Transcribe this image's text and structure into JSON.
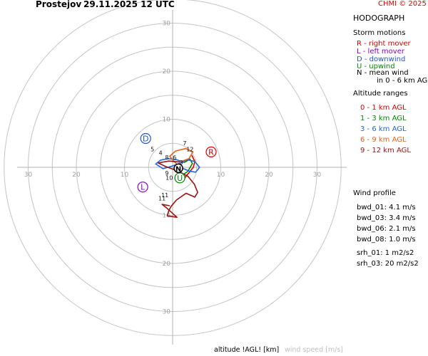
{
  "header": {
    "location": "Prostejov",
    "datetime": "29.11.2025 12 UTC",
    "credit": "CHMI © 2025"
  },
  "panel": {
    "title": "HODOGRAPH",
    "storm_motions_title": "Storm motions",
    "storm_motions": [
      {
        "text": "R - right mover",
        "color": "#dd0000"
      },
      {
        "text": "L - left mover",
        "color": "#8800cc"
      },
      {
        "text": "D - downwind",
        "color": "#2255cc"
      },
      {
        "text": "U - upwind",
        "color": "#008800"
      },
      {
        "text": "N - mean wind",
        "color": "#000000"
      },
      {
        "text": "in 0 - 6 km AGL",
        "color": "#000000"
      }
    ],
    "altitude_title": "Altitude ranges",
    "altitude_ranges": [
      {
        "text": "0 - 1 km AGL",
        "color": "#dd0000"
      },
      {
        "text": "1 - 3 km AGL",
        "color": "#008800"
      },
      {
        "text": "3 - 6 km AGL",
        "color": "#2266dd"
      },
      {
        "text": "6 - 9 km AGL",
        "color": "#dd6622"
      },
      {
        "text": "9 - 12 km AGL",
        "color": "#991111"
      }
    ],
    "wind_profile_title": "Wind profile",
    "shear": [
      "bwd_01: 4.1 m/s",
      "bwd_03: 3.4 m/s",
      "bwd_06: 2.1 m/s",
      "bwd_08: 1.0 m/s"
    ],
    "helicity": [
      "srh_01: 1 m2/s2",
      "srh_03: 20 m2/s2"
    ]
  },
  "footer": {
    "altitude_label": "altitude !AGL! [km]",
    "speed_label": "wind speed [m/s]"
  },
  "chart_data": {
    "type": "hodograph",
    "axis_range": [
      -35,
      35
    ],
    "rings": [
      5,
      10,
      15,
      20,
      25,
      30,
      35
    ],
    "x_ticks": [
      {
        "value": -30,
        "label": "30"
      },
      {
        "value": -20,
        "label": "20"
      },
      {
        "value": -10,
        "label": "10"
      },
      {
        "value": 10,
        "label": "10"
      },
      {
        "value": 20,
        "label": "20"
      },
      {
        "value": 30,
        "label": "30"
      }
    ],
    "y_ticks": [
      {
        "value": 30,
        "label": "30"
      },
      {
        "value": 20,
        "label": "20"
      },
      {
        "value": 10,
        "label": "10"
      },
      {
        "value": -10,
        "label": "10"
      },
      {
        "value": -20,
        "label": "20"
      },
      {
        "value": -30,
        "label": "30"
      }
    ],
    "series": [
      {
        "color": "#dd0000",
        "points": [
          [
            4.0,
            2.5
          ],
          [
            4.6,
            1.2
          ],
          [
            4.3,
            0.0
          ],
          [
            3.5,
            -1.0
          ],
          [
            2.8,
            -1.8
          ],
          [
            2.5,
            -2.3
          ]
        ]
      },
      {
        "color": "#008800",
        "points": [
          [
            2.5,
            -2.3
          ],
          [
            1.5,
            -2.8
          ],
          [
            1.8,
            -1.8
          ],
          [
            3.2,
            -0.8
          ],
          [
            4.1,
            0.8
          ],
          [
            3.6,
            1.7
          ],
          [
            2.4,
            1.0
          ]
        ]
      },
      {
        "color": "#2266dd",
        "points": [
          [
            2.4,
            1.0
          ],
          [
            0.8,
            1.6
          ],
          [
            -1.0,
            1.8
          ],
          [
            -2.5,
            1.5
          ],
          [
            -3.5,
            0.7
          ],
          [
            -2.0,
            -0.3
          ],
          [
            0.0,
            0.3
          ],
          [
            1.7,
            0.9
          ],
          [
            3.0,
            1.6
          ],
          [
            4.6,
            1.2
          ],
          [
            5.6,
            0.0
          ],
          [
            4.8,
            -1.0
          ],
          [
            3.5,
            -0.8
          ],
          [
            2.0,
            -0.2
          ]
        ]
      },
      {
        "color": "#dd6622",
        "points": [
          [
            2.0,
            -0.2
          ],
          [
            0.5,
            1.0
          ],
          [
            -0.6,
            2.3
          ],
          [
            0.6,
            3.4
          ],
          [
            2.7,
            3.9
          ],
          [
            4.2,
            3.2
          ],
          [
            3.4,
            1.8
          ],
          [
            1.5,
            1.1
          ]
        ]
      },
      {
        "color": "#991111",
        "points": [
          [
            1.5,
            1.1
          ],
          [
            -0.8,
            1.3
          ],
          [
            -3.0,
            0.9
          ],
          [
            -1.5,
            0.2
          ],
          [
            1.2,
            -0.8
          ],
          [
            3.2,
            -1.9
          ],
          [
            4.5,
            -3.5
          ],
          [
            5.2,
            -5.2
          ],
          [
            4.6,
            -6.2
          ],
          [
            2.8,
            -5.4
          ],
          [
            0.8,
            -6.8
          ],
          [
            -0.3,
            -8.1
          ],
          [
            -0.8,
            -9.0
          ],
          [
            -1.1,
            -10.1
          ],
          [
            0.9,
            -10.4
          ],
          [
            -1.3,
            -8.4
          ],
          [
            -2.2,
            -7.7
          ],
          [
            -0.6,
            -8.0
          ]
        ]
      }
    ],
    "altitude_labels": [
      {
        "text": "7",
        "x": 2.5,
        "y": 4.6
      },
      {
        "text": "5",
        "x": -4.2,
        "y": 3.3
      },
      {
        "text": "4",
        "x": -2.5,
        "y": 2.6
      },
      {
        "text": "12",
        "x": 3.6,
        "y": 3.3
      },
      {
        "text": "8",
        "x": -1.2,
        "y": 1.6
      },
      {
        "text": "6",
        "x": 0.4,
        "y": 1.6
      },
      {
        "text": "3",
        "x": 1.8,
        "y": 0.6
      },
      {
        "text": "9",
        "x": -1.2,
        "y": -1.6
      },
      {
        "text": "10",
        "x": -0.7,
        "y": -2.6
      },
      {
        "text": "11",
        "x": -1.6,
        "y": -6.2
      },
      {
        "text": "11",
        "x": -2.2,
        "y": -6.9
      }
    ],
    "storm_markers": [
      {
        "letter": "R",
        "x": 8.0,
        "y": 3.2,
        "color": "#dd0000"
      },
      {
        "letter": "L",
        "x": -6.2,
        "y": -4.1,
        "color": "#8800cc"
      },
      {
        "letter": "D",
        "x": -5.6,
        "y": 6.0,
        "color": "#2255cc"
      },
      {
        "letter": "U",
        "x": 1.5,
        "y": -2.2,
        "color": "#008800"
      },
      {
        "letter": "N",
        "x": 1.2,
        "y": -0.2,
        "color": "#000000"
      }
    ]
  }
}
